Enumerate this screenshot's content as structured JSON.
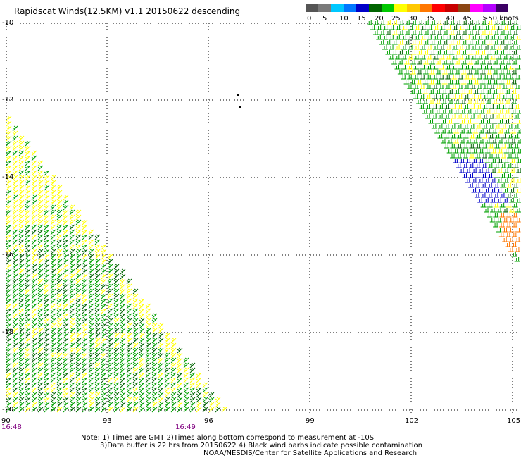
{
  "title": "Rapidscat Winds(12.5KM) v1.1 20150622 descending",
  "colorbar": {
    "colors": [
      "#555555",
      "#7a7a7a",
      "#00c8ff",
      "#0077ff",
      "#0000c8",
      "#006400",
      "#00c800",
      "#ffff00",
      "#ffc800",
      "#ff7700",
      "#ff0000",
      "#c80000",
      "#8b4513",
      "#ff00ff",
      "#b400ff",
      "#3c0064"
    ],
    "labels": [
      "0",
      "5",
      "10",
      "15",
      "20",
      "25",
      "30",
      "35",
      "40",
      "45",
      ">50 knots"
    ]
  },
  "axes": {
    "x_ticks": [
      "90",
      "93",
      "96",
      "99",
      "102",
      "105"
    ],
    "y_ticks": [
      "-10",
      "-12",
      "-14",
      "-16",
      "-18",
      "-20"
    ]
  },
  "times": [
    "16:48",
    "16:49"
  ],
  "notes": [
    "Note: 1) Times are GMT 2)Times along bottom correspond to measurement at -10S",
    "3)Data buffer is 22 hrs from 20150622 4) Black wind barbs indicate possible contamination",
    "NOAA/NESDIS/Center for Satellite Applications and Research"
  ],
  "legend_colors": {
    "green": "#00a000",
    "dark_green": "#006400",
    "yellow": "#ffff00",
    "blue": "#0000c8",
    "orange": "#ff7700"
  }
}
